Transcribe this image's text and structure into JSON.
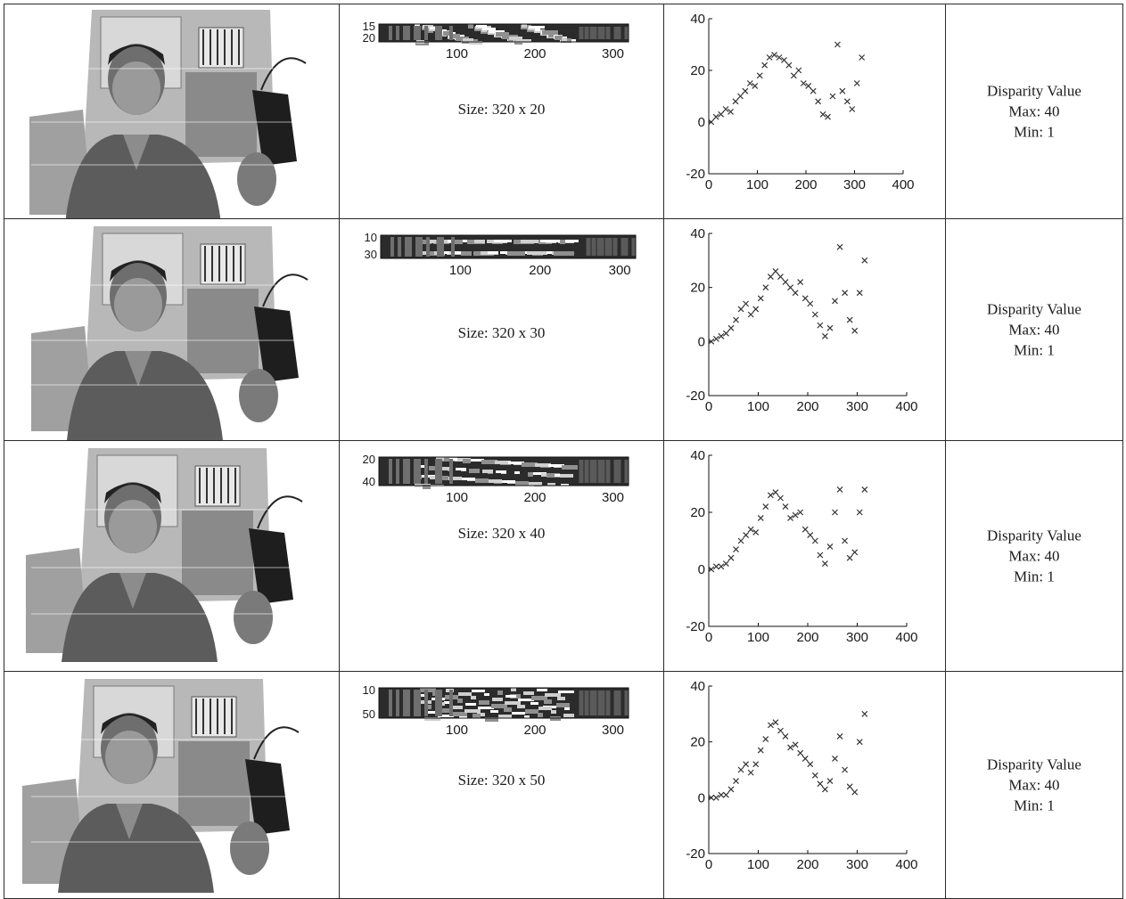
{
  "rows": [
    {
      "window_size_label": "Size: 320 x 20",
      "map_y_ticks": [
        "15",
        "20"
      ],
      "map_x_ticks": [
        "100",
        "200",
        "300"
      ],
      "disparity": {
        "title": "Disparity Value",
        "max": "Max: 40",
        "min": "Min: 1"
      }
    },
    {
      "window_size_label": "Size: 320 x 30",
      "map_y_ticks": [
        "10",
        "30"
      ],
      "map_x_ticks": [
        "100",
        "200",
        "300"
      ],
      "disparity": {
        "title": "Disparity Value",
        "max": "Max: 40",
        "min": "Min: 1"
      }
    },
    {
      "window_size_label": "Size: 320 x 40",
      "map_y_ticks": [
        "20",
        "40"
      ],
      "map_x_ticks": [
        "100",
        "200",
        "300"
      ],
      "disparity": {
        "title": "Disparity Value",
        "max": "Max: 40",
        "min": "Min: 1"
      }
    },
    {
      "window_size_label": "Size: 320 x 50",
      "map_y_ticks": [
        "10",
        "50"
      ],
      "map_x_ticks": [
        "100",
        "200",
        "300"
      ],
      "disparity": {
        "title": "Disparity Value",
        "max": "Max: 40",
        "min": "Min: 1"
      }
    }
  ],
  "chart_data": [
    {
      "type": "scatter",
      "series": [
        {
          "marker": "x",
          "x": [
            5,
            15,
            25,
            35,
            45,
            55,
            65,
            75,
            85,
            95,
            105,
            115,
            125,
            135,
            145,
            155,
            165,
            175,
            185,
            195,
            205,
            215,
            225,
            235,
            245,
            255,
            265,
            275,
            285,
            295,
            305,
            315
          ],
          "y": [
            0,
            2,
            3,
            5,
            4,
            8,
            10,
            12,
            15,
            14,
            18,
            22,
            25,
            26,
            25,
            24,
            22,
            18,
            20,
            15,
            14,
            12,
            8,
            3,
            2,
            10,
            30,
            12,
            8,
            5,
            15,
            25
          ]
        }
      ],
      "xlim": [
        0,
        400
      ],
      "ylim": [
        -20,
        40
      ],
      "x_ticks": [
        0,
        100,
        200,
        300,
        400
      ],
      "y_ticks": [
        -20,
        0,
        20,
        40
      ],
      "xlabel": "",
      "ylabel": "",
      "title": ""
    },
    {
      "type": "scatter",
      "series": [
        {
          "marker": "x",
          "x": [
            5,
            15,
            25,
            35,
            45,
            55,
            65,
            75,
            85,
            95,
            105,
            115,
            125,
            135,
            145,
            155,
            165,
            175,
            185,
            195,
            205,
            215,
            225,
            235,
            245,
            255,
            265,
            275,
            285,
            295,
            305,
            315
          ],
          "y": [
            0,
            1,
            2,
            3,
            5,
            8,
            12,
            14,
            10,
            12,
            16,
            20,
            24,
            26,
            24,
            22,
            20,
            18,
            22,
            16,
            14,
            10,
            6,
            2,
            5,
            15,
            35,
            18,
            8,
            4,
            18,
            30
          ]
        }
      ],
      "xlim": [
        0,
        400
      ],
      "ylim": [
        -20,
        40
      ],
      "x_ticks": [
        0,
        100,
        200,
        300,
        400
      ],
      "y_ticks": [
        -20,
        0,
        20,
        40
      ],
      "xlabel": "",
      "ylabel": "",
      "title": ""
    },
    {
      "type": "scatter",
      "series": [
        {
          "marker": "x",
          "x": [
            5,
            15,
            25,
            35,
            45,
            55,
            65,
            75,
            85,
            95,
            105,
            115,
            125,
            135,
            145,
            155,
            165,
            175,
            185,
            195,
            205,
            215,
            225,
            235,
            245,
            255,
            265,
            275,
            285,
            295,
            305,
            315
          ],
          "y": [
            0,
            1,
            1,
            2,
            4,
            7,
            10,
            12,
            14,
            13,
            18,
            22,
            26,
            27,
            25,
            22,
            18,
            19,
            20,
            14,
            12,
            10,
            5,
            2,
            8,
            20,
            28,
            10,
            4,
            6,
            20,
            28
          ]
        }
      ],
      "xlim": [
        0,
        400
      ],
      "ylim": [
        -20,
        40
      ],
      "x_ticks": [
        0,
        100,
        200,
        300,
        400
      ],
      "y_ticks": [
        -20,
        0,
        20,
        40
      ],
      "xlabel": "",
      "ylabel": "",
      "title": ""
    },
    {
      "type": "scatter",
      "series": [
        {
          "marker": "x",
          "x": [
            5,
            15,
            25,
            35,
            45,
            55,
            65,
            75,
            85,
            95,
            105,
            115,
            125,
            135,
            145,
            155,
            165,
            175,
            185,
            195,
            205,
            215,
            225,
            235,
            245,
            255,
            265,
            275,
            285,
            295,
            305,
            315
          ],
          "y": [
            0,
            0,
            1,
            1,
            3,
            6,
            10,
            12,
            9,
            12,
            17,
            21,
            26,
            27,
            24,
            22,
            18,
            19,
            16,
            14,
            12,
            8,
            5,
            3,
            6,
            14,
            22,
            10,
            4,
            2,
            20,
            30
          ]
        }
      ],
      "xlim": [
        0,
        400
      ],
      "ylim": [
        -20,
        40
      ],
      "x_ticks": [
        0,
        100,
        200,
        300,
        400
      ],
      "y_ticks": [
        -20,
        0,
        20,
        40
      ],
      "xlabel": "",
      "ylabel": "",
      "title": ""
    }
  ]
}
